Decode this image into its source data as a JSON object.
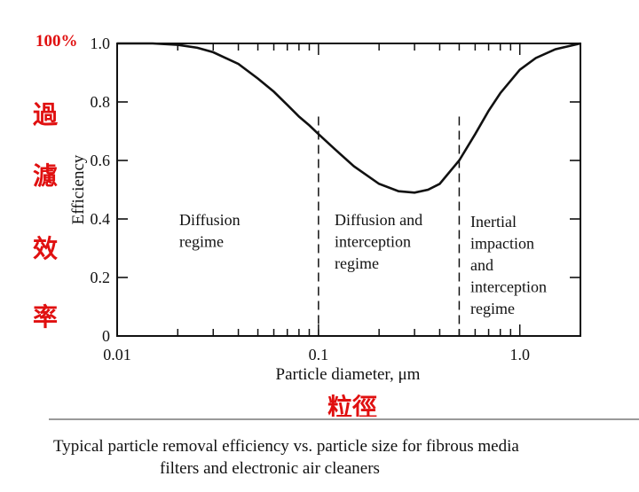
{
  "chart_data": {
    "type": "line",
    "xscale": "log",
    "xlim": [
      0.01,
      2.0
    ],
    "ylim": [
      0,
      1.0
    ],
    "xlabel": "Particle diameter, μm",
    "ylabel": "Efficiency",
    "x_ticks": [
      "0.01",
      "0.1",
      "1.0"
    ],
    "y_ticks": [
      "0",
      "0.2",
      "0.4",
      "0.6",
      "0.8",
      "1.0"
    ],
    "grid": false,
    "series": [
      {
        "x": [
          0.01,
          0.015,
          0.02,
          0.025,
          0.03,
          0.04,
          0.05,
          0.06,
          0.07,
          0.08,
          0.09,
          0.1,
          0.12,
          0.15,
          0.2,
          0.25,
          0.3,
          0.35,
          0.4,
          0.5,
          0.6,
          0.7,
          0.8,
          1.0,
          1.2,
          1.5,
          2.0
        ],
        "y": [
          1.0,
          1.0,
          0.995,
          0.985,
          0.97,
          0.93,
          0.88,
          0.835,
          0.79,
          0.75,
          0.72,
          0.69,
          0.64,
          0.58,
          0.52,
          0.495,
          0.49,
          0.5,
          0.52,
          0.6,
          0.69,
          0.77,
          0.83,
          0.91,
          0.95,
          0.98,
          1.0
        ]
      }
    ],
    "boundaries": [
      0.1,
      0.5
    ],
    "regions": [
      {
        "lines": [
          "Diffusion",
          "regime"
        ]
      },
      {
        "lines": [
          "Diffusion and",
          "interception",
          "regime"
        ]
      },
      {
        "lines": [
          "Inertial",
          "impaction",
          "and",
          "interception",
          "regime"
        ]
      }
    ]
  },
  "annotations": {
    "percent_label": "100%",
    "efficiency_chars": [
      "過",
      "濾",
      "效",
      "率"
    ],
    "diameter_label": "粒徑"
  },
  "caption": {
    "line1": "Typical particle removal efficiency vs. particle size for fibrous media",
    "line2": "filters and electronic air cleaners"
  },
  "colors": {
    "annotation_red": "#e01010",
    "ink": "#111111"
  }
}
